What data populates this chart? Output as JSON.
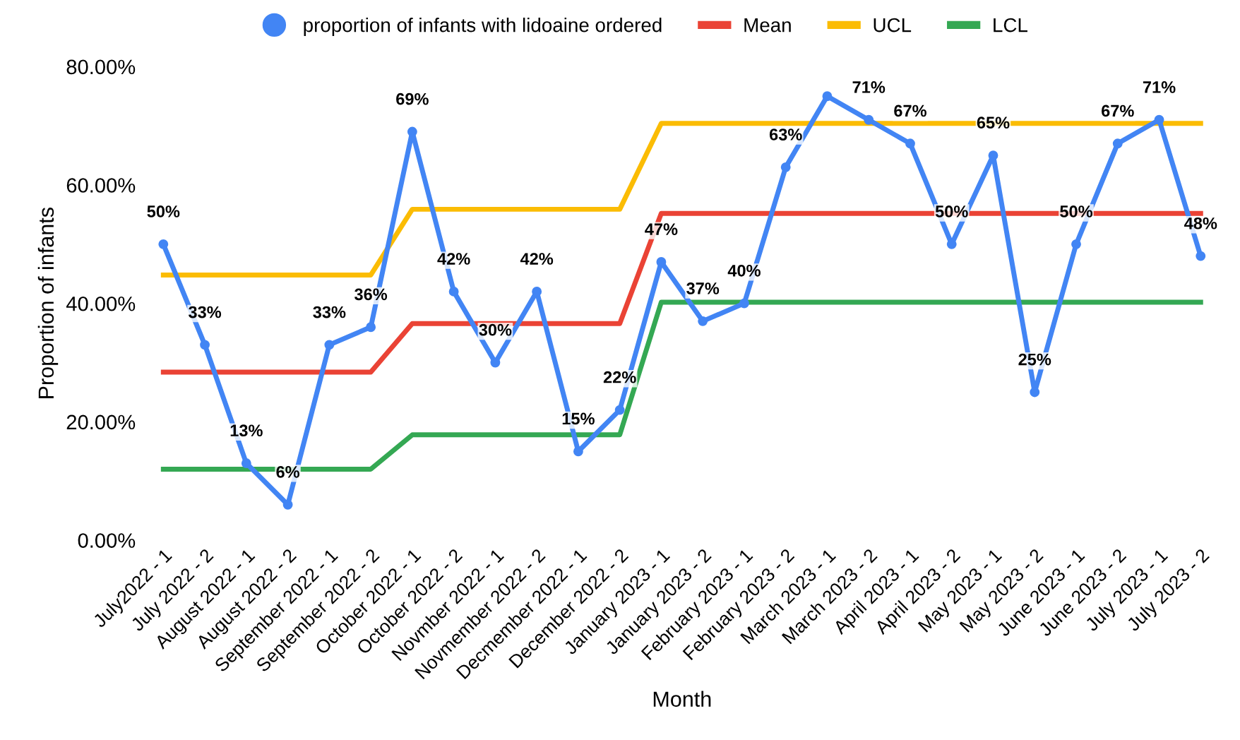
{
  "chart_data": {
    "type": "line",
    "xlabel": "Month",
    "ylabel": "Proportion of infants",
    "categories": [
      "July2022 - 1",
      "July 2022 - 2",
      "August 2022 - 1",
      "August 2022 - 2",
      "September 2022 - 1",
      "September 2022 - 2",
      "October 2022 - 1",
      "October 2022 - 2",
      "Novmber 2022 - 1",
      "Novmember 2022 - 2",
      "Decmember 2022 - 1",
      "December 2022 - 2",
      "January 2023 - 1",
      "January 2023 - 2",
      "February 2023 - 1",
      "February 2023 - 2",
      "March 2023 - 1",
      "March 2023 - 2",
      "April 2023 - 1",
      "April 2023 - 2",
      "May 2023 - 1",
      "May 2023 - 2",
      "June 2023 - 1",
      "June 2023 - 2",
      "July 2023 - 1",
      "July 2023 - 2"
    ],
    "series": [
      {
        "name": "proportion of infants with lidoaine ordered",
        "color": "#4285f4",
        "marker": "circle",
        "values": [
          50,
          33,
          13,
          6,
          33,
          36,
          69,
          42,
          30,
          42,
          15,
          22,
          47,
          37,
          40,
          63,
          75,
          71,
          67,
          50,
          65,
          25,
          50,
          67,
          71,
          48
        ],
        "value_labels": [
          "50%",
          "33%",
          "13%",
          "6%",
          "33%",
          "36%",
          "69%",
          "42%",
          "30%",
          "42%",
          "15%",
          "22%",
          "47%",
          "37%",
          "40%",
          "63%",
          null,
          "71%",
          "67%",
          "50%",
          "65%",
          "25%",
          "50%",
          "67%",
          "71%",
          "48%"
        ]
      },
      {
        "name": "Mean",
        "color": "#ea4335",
        "marker": "none",
        "values": [
          28.4,
          28.4,
          28.4,
          28.4,
          28.4,
          28.4,
          36.6,
          36.6,
          36.6,
          36.6,
          36.6,
          36.6,
          55.2,
          55.2,
          55.2,
          55.2,
          55.2,
          55.2,
          55.2,
          55.2,
          55.2,
          55.2,
          55.2,
          55.2,
          55.2,
          55.2
        ]
      },
      {
        "name": "UCL",
        "color": "#fbbc04",
        "marker": "none",
        "values": [
          44.8,
          44.8,
          44.8,
          44.8,
          44.8,
          44.8,
          55.9,
          55.9,
          55.9,
          55.9,
          55.9,
          55.9,
          70.4,
          70.4,
          70.4,
          70.4,
          70.4,
          70.4,
          70.4,
          70.4,
          70.4,
          70.4,
          70.4,
          70.4,
          70.4,
          70.4
        ]
      },
      {
        "name": "LCL",
        "color": "#34a853",
        "marker": "none",
        "values": [
          12.0,
          12.0,
          12.0,
          12.0,
          12.0,
          12.0,
          17.8,
          17.8,
          17.8,
          17.8,
          17.8,
          17.8,
          40.2,
          40.2,
          40.2,
          40.2,
          40.2,
          40.2,
          40.2,
          40.2,
          40.2,
          40.2,
          40.2,
          40.2,
          40.2,
          40.2
        ]
      }
    ],
    "ylim": [
      0,
      80
    ],
    "yticks": [
      {
        "value": 0,
        "label": "0.00%"
      },
      {
        "value": 20,
        "label": "20.00%"
      },
      {
        "value": 40,
        "label": "40.00%"
      },
      {
        "value": 60,
        "label": "60.00%"
      },
      {
        "value": 80,
        "label": "80.00%"
      }
    ],
    "grid": false,
    "legend": "top",
    "line_style": "solid"
  }
}
